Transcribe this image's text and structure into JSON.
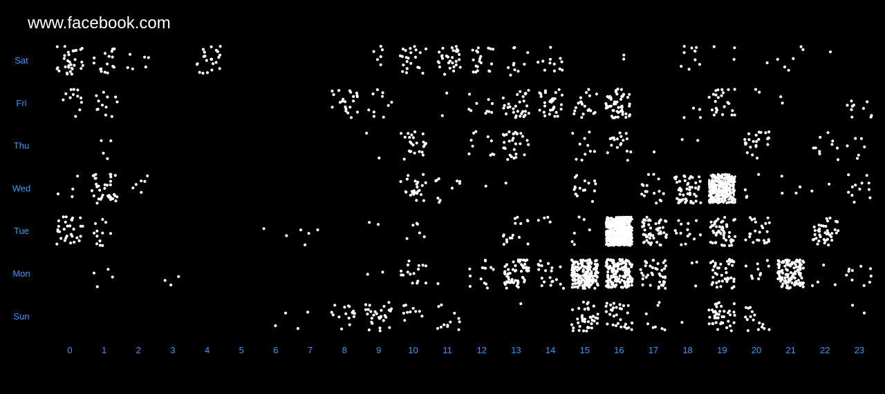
{
  "chart_data": {
    "type": "scatter",
    "title": "www.facebook.com",
    "x_categories": [
      "0",
      "1",
      "2",
      "3",
      "4",
      "5",
      "6",
      "7",
      "8",
      "9",
      "10",
      "11",
      "12",
      "13",
      "14",
      "15",
      "16",
      "17",
      "18",
      "19",
      "20",
      "21",
      "22",
      "23"
    ],
    "y_categories": [
      "Sat",
      "Fri",
      "Thu",
      "Wed",
      "Tue",
      "Mon",
      "Sun"
    ],
    "counts": [
      [
        32,
        16,
        6,
        0,
        22,
        0,
        0,
        0,
        0,
        6,
        22,
        30,
        20,
        10,
        12,
        0,
        2,
        0,
        10,
        3,
        1,
        6,
        1,
        0
      ],
      [
        12,
        12,
        0,
        0,
        0,
        0,
        0,
        0,
        22,
        10,
        0,
        2,
        10,
        30,
        30,
        20,
        50,
        0,
        4,
        24,
        2,
        2,
        0,
        10
      ],
      [
        0,
        4,
        0,
        0,
        0,
        0,
        0,
        0,
        0,
        2,
        24,
        0,
        10,
        30,
        0,
        10,
        18,
        1,
        2,
        0,
        24,
        0,
        10,
        6
      ],
      [
        4,
        36,
        6,
        0,
        0,
        0,
        0,
        0,
        0,
        0,
        24,
        10,
        1,
        1,
        0,
        16,
        0,
        16,
        50,
        500,
        4,
        4,
        2,
        12
      ],
      [
        30,
        12,
        0,
        0,
        0,
        0,
        2,
        4,
        0,
        2,
        6,
        0,
        0,
        16,
        4,
        6,
        800,
        50,
        14,
        50,
        24,
        0,
        40,
        0
      ],
      [
        0,
        4,
        0,
        3,
        0,
        0,
        0,
        0,
        0,
        2,
        16,
        1,
        14,
        60,
        20,
        180,
        160,
        40,
        3,
        40,
        10,
        120,
        4,
        10
      ],
      [
        0,
        0,
        0,
        0,
        0,
        0,
        2,
        2,
        16,
        30,
        10,
        12,
        0,
        1,
        0,
        40,
        30,
        8,
        1,
        40,
        16,
        0,
        0,
        2
      ]
    ],
    "point_color": "#ffffff",
    "label_color": "#2f9bff",
    "xlabel": "",
    "ylabel": "",
    "grid": false,
    "legend": "none"
  }
}
